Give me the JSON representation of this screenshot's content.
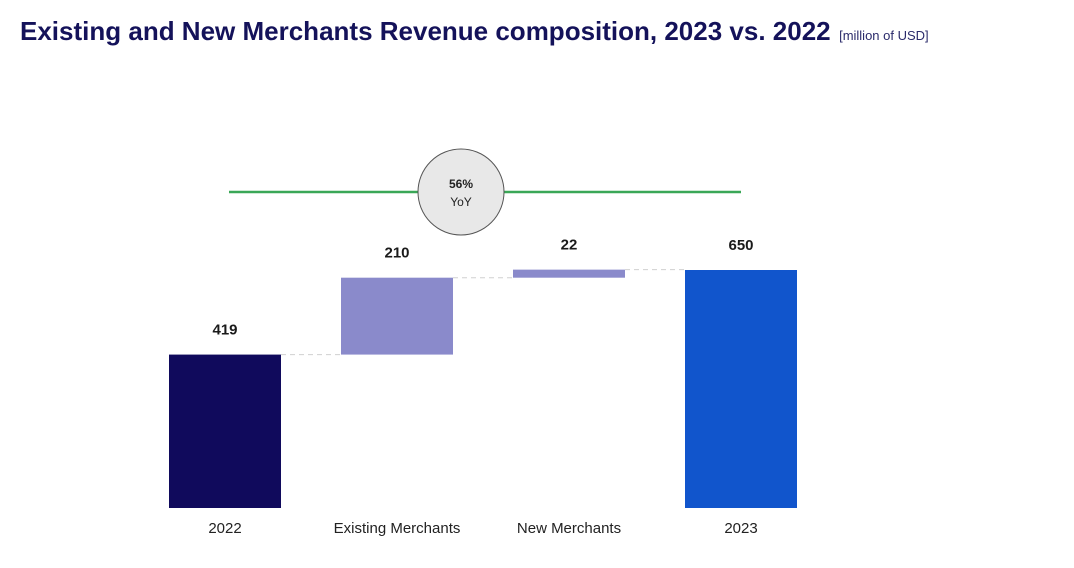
{
  "title": "Existing and New Merchants Revenue composition, 2023 vs. 2022",
  "units": "[million of USD]",
  "yoy": {
    "value": "56%",
    "label": "YoY"
  },
  "colors": {
    "title": "#14125a",
    "start_bar": "#100a5c",
    "increment_bar": "#8a8acb",
    "end_bar": "#1155cc",
    "yoy_line": "#3aa757",
    "yoy_circle_fill": "#e8e8e8",
    "connector": "#d0d0d0"
  },
  "chart_data": {
    "type": "waterfall",
    "title": "Existing and New Merchants Revenue composition, 2023 vs. 2022",
    "units": "[million of USD]",
    "categories": [
      "2022",
      "Existing Merchants",
      "New Merchants",
      "2023"
    ],
    "values": [
      419,
      210,
      22,
      650
    ],
    "labels": [
      "419",
      "210",
      "22",
      "650"
    ],
    "kinds": [
      "total",
      "increment",
      "increment",
      "total"
    ],
    "annotation": "56% YoY",
    "ylim": [
      0,
      650
    ]
  }
}
